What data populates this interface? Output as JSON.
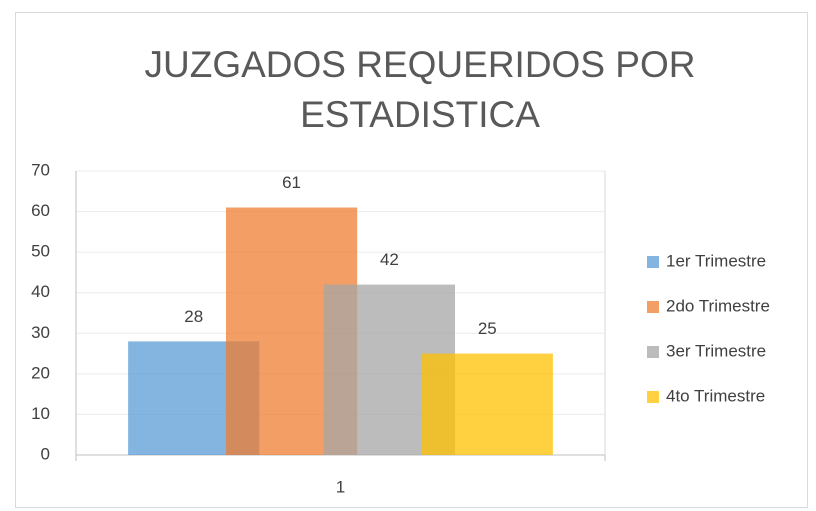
{
  "chart_data": {
    "type": "bar",
    "title": "JUZGADOS REQUERIDOS POR ESTADISTICA",
    "categories": [
      "1"
    ],
    "series": [
      {
        "name": "1er Trimestre",
        "color": "#5b9bd5",
        "values": [
          28
        ]
      },
      {
        "name": "2do Trimestre",
        "color": "#ed7d31",
        "values": [
          61
        ]
      },
      {
        "name": "3er Trimestre",
        "color": "#a5a5a5",
        "values": [
          42
        ]
      },
      {
        "name": "4to Trimestre",
        "color": "#ffc000",
        "values": [
          25
        ]
      }
    ],
    "ylim": [
      0,
      70
    ],
    "yticks": [
      0,
      10,
      20,
      30,
      40,
      50,
      60,
      70
    ],
    "grid": true,
    "legend": "right"
  }
}
